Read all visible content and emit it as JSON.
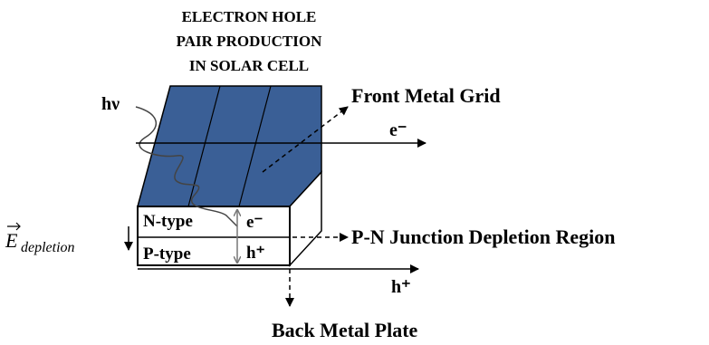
{
  "title": {
    "lines": [
      "ELECTRON HOLE",
      "PAIR PRODUCTION",
      "IN SOLAR CELL"
    ]
  },
  "labels": {
    "photon": "hν",
    "front_grid": "Front Metal Grid",
    "electron_out": "e⁻",
    "n_type": "N-type",
    "p_type": "P-type",
    "electron_in": "e⁻",
    "hole_in": "h⁺",
    "junction": "P-N Junction Depletion Region",
    "hole_out": "h⁺",
    "back_plate": "Back Metal Plate",
    "field_symbol": "E",
    "field_subscript": "depletion"
  }
}
